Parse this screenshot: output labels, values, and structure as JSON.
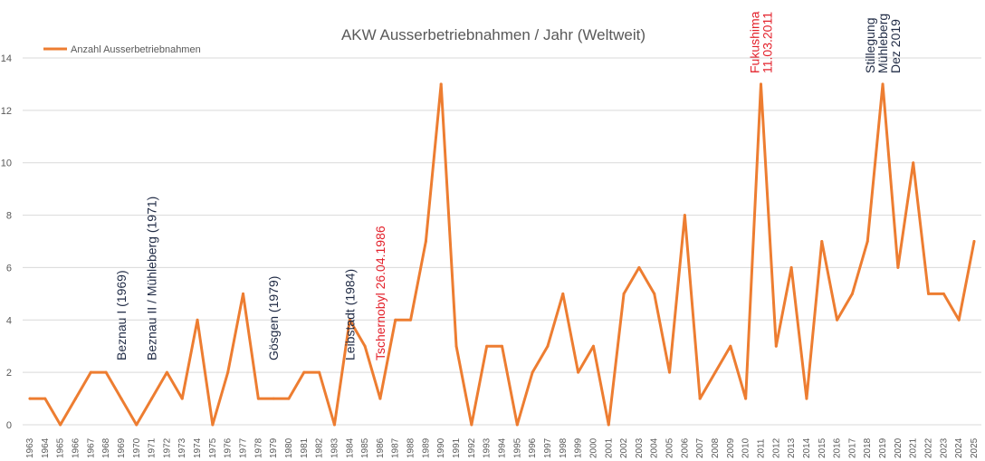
{
  "chart_data": {
    "type": "line",
    "title": "AKW Ausserbetriebnahmen / Jahr (Weltweit)",
    "xlabel": "",
    "ylabel": "",
    "ylim": [
      0,
      14
    ],
    "yticks": [
      "0",
      "2",
      "4",
      "6",
      "8",
      "10",
      "12",
      "14"
    ],
    "grid": true,
    "legend_position": "top-left",
    "x": [
      "1963",
      "1964",
      "1965",
      "1966",
      "1967",
      "1968",
      "1969",
      "1970",
      "1971",
      "1972",
      "1973",
      "1974",
      "1975",
      "1976",
      "1977",
      "1978",
      "1979",
      "1980",
      "1981",
      "1982",
      "1983",
      "1984",
      "1985",
      "1986",
      "1987",
      "1988",
      "1989",
      "1990",
      "1991",
      "1992",
      "1993",
      "1994",
      "1995",
      "1996",
      "1997",
      "1998",
      "1999",
      "2000",
      "2001",
      "2002",
      "2003",
      "2004",
      "2005",
      "2006",
      "2007",
      "2008",
      "2009",
      "2010",
      "2011",
      "2012",
      "2013",
      "2014",
      "2015",
      "2016",
      "2017",
      "2018",
      "2019",
      "2020",
      "2021",
      "2022",
      "2023",
      "2024",
      "2025"
    ],
    "series": [
      {
        "name": "Anzahl Ausserbetriebnahmen",
        "color": "#ed7d31",
        "values": [
          1,
          1,
          0,
          1,
          2,
          2,
          1,
          0,
          1,
          2,
          1,
          4,
          0,
          2,
          5,
          1,
          1,
          1,
          2,
          2,
          0,
          4,
          3,
          1,
          4,
          4,
          7,
          13,
          3,
          0,
          3,
          3,
          0,
          2,
          3,
          5,
          2,
          3,
          0,
          5,
          6,
          5,
          2,
          8,
          1,
          2,
          3,
          1,
          13,
          3,
          6,
          1,
          7,
          4,
          5,
          7,
          13,
          6,
          10,
          5,
          5,
          4,
          7
        ]
      }
    ],
    "annotations": [
      {
        "text": "Beznau I (1969)",
        "x": "1969",
        "color": "#1f2a44"
      },
      {
        "text": "Beznau II / Mühleberg (1971)",
        "x": "1971",
        "color": "#1f2a44"
      },
      {
        "text": "Gösgen (1979)",
        "x": "1979",
        "color": "#1f2a44"
      },
      {
        "text": "Leibstadt (1984)",
        "x": "1984",
        "color": "#1f2a44"
      },
      {
        "text": "Tschernobyl 26.04.1986",
        "x": "1986",
        "color": "#e3212b"
      },
      {
        "lines": [
          "Fukushima",
          "11.03.2011"
        ],
        "x": "2011",
        "color": "#e3212b"
      },
      {
        "lines": [
          "Stillegung",
          "Mühleberg",
          "Dez 2019"
        ],
        "x": "2019",
        "color": "#1f2a44"
      }
    ]
  }
}
